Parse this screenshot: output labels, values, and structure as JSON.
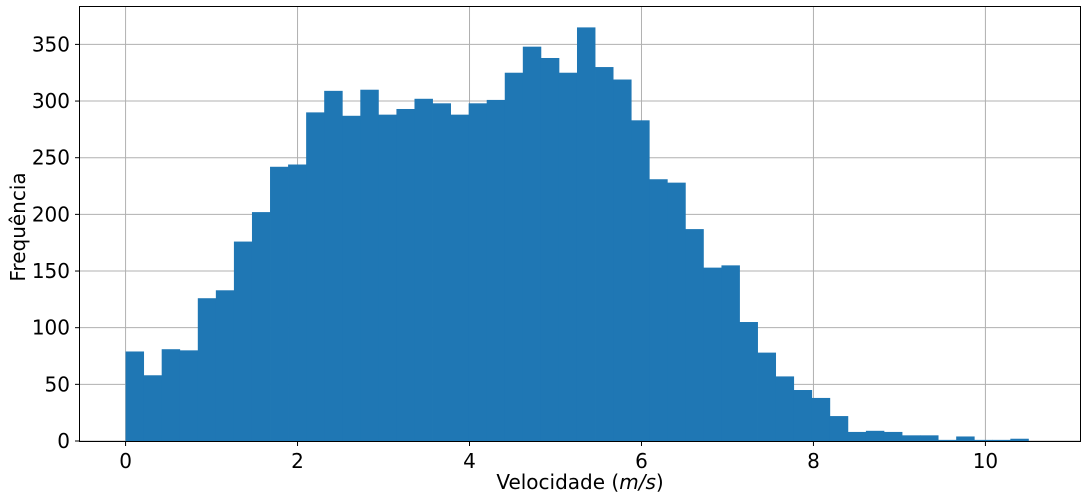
{
  "chart_data": {
    "type": "bar",
    "title": "",
    "xlabel": "Velocidade",
    "xlabel_unit_italic": "m/s",
    "ylabel": "Frequência",
    "xlim": [
      -0.53,
      11.1
    ],
    "ylim": [
      0,
      383
    ],
    "xticks": [
      0,
      2,
      4,
      6,
      8,
      10
    ],
    "yticks": [
      0,
      50,
      100,
      150,
      200,
      250,
      300,
      350
    ],
    "grid": true,
    "bar_color": "#1f77b4",
    "bin_start": 0.0,
    "bin_width": 0.21,
    "values": [
      79,
      58,
      81,
      80,
      126,
      133,
      176,
      202,
      242,
      244,
      290,
      309,
      287,
      310,
      288,
      293,
      302,
      298,
      288,
      298,
      301,
      325,
      348,
      338,
      325,
      365,
      330,
      319,
      283,
      231,
      228,
      187,
      153,
      155,
      105,
      78,
      57,
      45,
      38,
      22,
      8,
      9,
      8,
      5,
      5,
      1,
      4,
      1,
      1,
      2
    ]
  }
}
